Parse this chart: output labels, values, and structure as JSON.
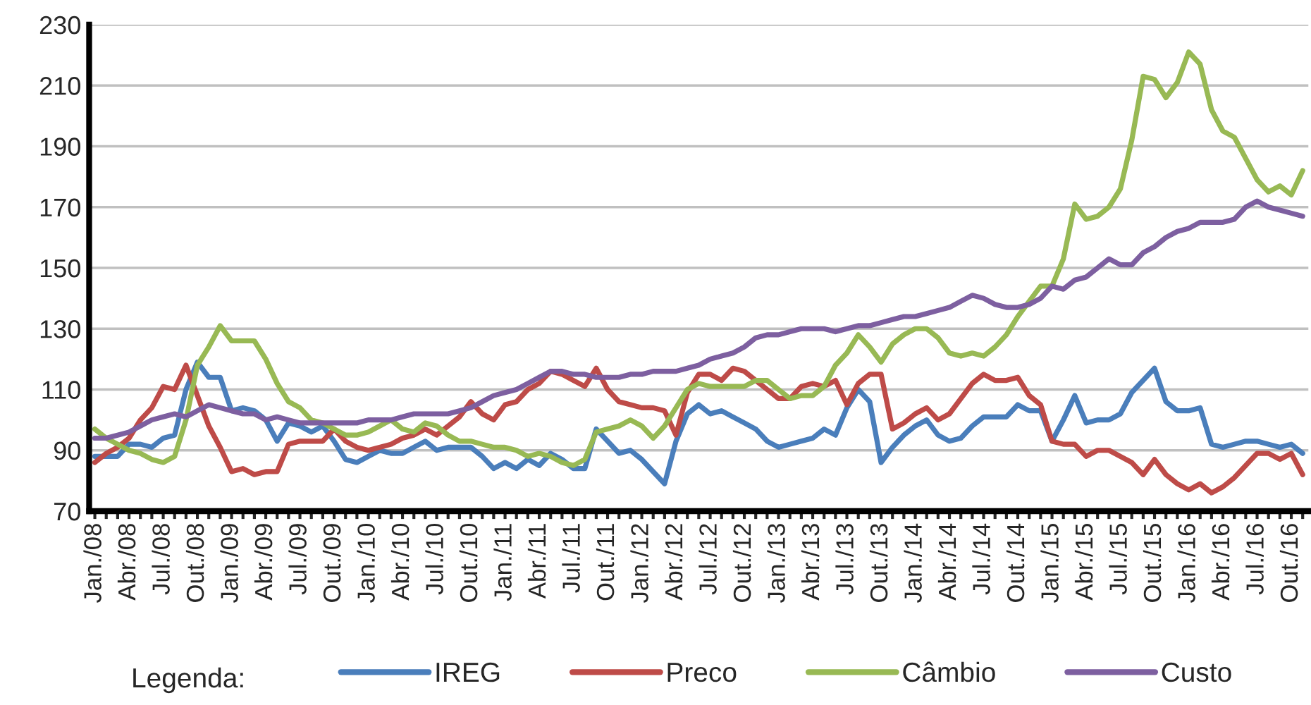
{
  "chart_data": {
    "type": "line",
    "categories": [
      "Jan./08",
      null,
      null,
      "Abr./08",
      null,
      null,
      "Jul./08",
      null,
      null,
      "Out./08",
      null,
      null,
      "Jan./09",
      null,
      null,
      "Abr./09",
      null,
      null,
      "Jul./09",
      null,
      null,
      "Out./09",
      null,
      null,
      "Jan./10",
      null,
      null,
      "Abr./10",
      null,
      null,
      "Jul./10",
      null,
      null,
      "Out./10",
      null,
      null,
      "Jan./11",
      null,
      null,
      "Abr./11",
      null,
      null,
      "Jul./11",
      null,
      null,
      "Out./11",
      null,
      null,
      "Jan./12",
      null,
      null,
      "Abr./12",
      null,
      null,
      "Jul./12",
      null,
      null,
      "Out./12",
      null,
      null,
      "Jan./13",
      null,
      null,
      "Abr./13",
      null,
      null,
      "Jul./13",
      null,
      null,
      "Out./13",
      null,
      null,
      "Jan./14",
      null,
      null,
      "Abr./14",
      null,
      null,
      "Jul./14",
      null,
      null,
      "Out./14",
      null,
      null,
      "Jan./15",
      null,
      null,
      "Abr./15",
      null,
      null,
      "Jul./15",
      null,
      null,
      "Out./15",
      null,
      null,
      "Jan./16",
      null,
      null,
      "Abr./16",
      null,
      null,
      "Jul./16",
      null,
      null,
      "Out./16",
      null
    ],
    "series": [
      {
        "name": "IREG",
        "color": "#4a7ebb",
        "values": [
          88,
          88,
          88,
          92,
          92,
          91,
          94,
          95,
          110,
          119,
          114,
          114,
          103,
          104,
          103,
          100,
          93,
          99,
          98,
          96,
          98,
          93,
          87,
          86,
          88,
          90,
          89,
          89,
          91,
          93,
          90,
          91,
          91,
          91,
          88,
          84,
          86,
          84,
          87,
          85,
          89,
          87,
          84,
          84,
          97,
          93,
          89,
          90,
          87,
          83,
          79,
          93,
          102,
          105,
          102,
          103,
          101,
          99,
          97,
          93,
          91,
          92,
          93,
          94,
          97,
          95,
          104,
          110,
          106,
          86,
          91,
          95,
          98,
          100,
          95,
          93,
          94,
          98,
          101,
          101,
          101,
          105,
          103,
          103,
          93,
          100,
          108,
          99,
          100,
          100,
          102,
          109,
          113,
          117,
          106,
          103,
          103,
          104,
          92,
          91,
          92,
          93,
          93,
          92,
          91,
          92,
          89
        ]
      },
      {
        "name": "Preco",
        "color": "#be4b48",
        "values": [
          86,
          89,
          91,
          94,
          100,
          104,
          111,
          110,
          118,
          108,
          98,
          91,
          83,
          84,
          82,
          83,
          83,
          92,
          93,
          93,
          93,
          97,
          93,
          91,
          90,
          91,
          92,
          94,
          95,
          97,
          95,
          98,
          101,
          106,
          102,
          100,
          105,
          106,
          110,
          112,
          116,
          115,
          113,
          111,
          117,
          110,
          106,
          105,
          104,
          104,
          103,
          95,
          109,
          115,
          115,
          113,
          117,
          116,
          113,
          110,
          107,
          107,
          111,
          112,
          111,
          113,
          105,
          112,
          115,
          115,
          97,
          99,
          102,
          104,
          100,
          102,
          107,
          112,
          115,
          113,
          113,
          114,
          108,
          105,
          93,
          92,
          92,
          88,
          90,
          90,
          88,
          86,
          82,
          87,
          82,
          79,
          77,
          79,
          76,
          78,
          81,
          85,
          89,
          89,
          87,
          89,
          82
        ]
      },
      {
        "name": "Câmbio",
        "color": "#98b954",
        "values": [
          97,
          94,
          92,
          90,
          89,
          87,
          86,
          88,
          100,
          118,
          124,
          131,
          126,
          126,
          126,
          120,
          112,
          106,
          104,
          100,
          99,
          97,
          95,
          95,
          96,
          98,
          100,
          97,
          96,
          99,
          98,
          95,
          93,
          93,
          92,
          91,
          91,
          90,
          88,
          89,
          88,
          86,
          85,
          87,
          96,
          97,
          98,
          100,
          98,
          94,
          98,
          104,
          110,
          112,
          111,
          111,
          111,
          111,
          113,
          113,
          110,
          107,
          108,
          108,
          111,
          118,
          122,
          128,
          124,
          119,
          125,
          128,
          130,
          130,
          127,
          122,
          121,
          122,
          121,
          124,
          128,
          134,
          139,
          144,
          144,
          153,
          171,
          166,
          167,
          170,
          176,
          192,
          213,
          212,
          206,
          211,
          221,
          217,
          202,
          195,
          193,
          186,
          179,
          175,
          177,
          174,
          182
        ]
      },
      {
        "name": "Custo",
        "color": "#7d5fa0",
        "values": [
          94,
          94,
          95,
          96,
          98,
          100,
          101,
          102,
          101,
          103,
          105,
          104,
          103,
          102,
          102,
          100,
          101,
          100,
          99,
          99,
          99,
          99,
          99,
          99,
          100,
          100,
          100,
          101,
          102,
          102,
          102,
          102,
          103,
          104,
          106,
          108,
          109,
          110,
          112,
          114,
          116,
          116,
          115,
          115,
          114,
          114,
          114,
          115,
          115,
          116,
          116,
          116,
          117,
          118,
          120,
          121,
          122,
          124,
          127,
          128,
          128,
          129,
          130,
          130,
          130,
          129,
          130,
          131,
          131,
          132,
          133,
          134,
          134,
          135,
          136,
          137,
          139,
          141,
          140,
          138,
          137,
          137,
          138,
          140,
          144,
          143,
          146,
          147,
          150,
          153,
          151,
          151,
          155,
          157,
          160,
          162,
          163,
          165,
          165,
          165,
          166,
          170,
          172,
          170,
          169,
          168,
          167
        ]
      }
    ],
    "ylim": [
      70,
      230
    ],
    "yticks": [
      70,
      90,
      110,
      130,
      150,
      170,
      190,
      210,
      230
    ],
    "grid": "y",
    "legend": "bottom",
    "legend_title": "Legenda:",
    "line_style": "solid",
    "marker": "none"
  }
}
